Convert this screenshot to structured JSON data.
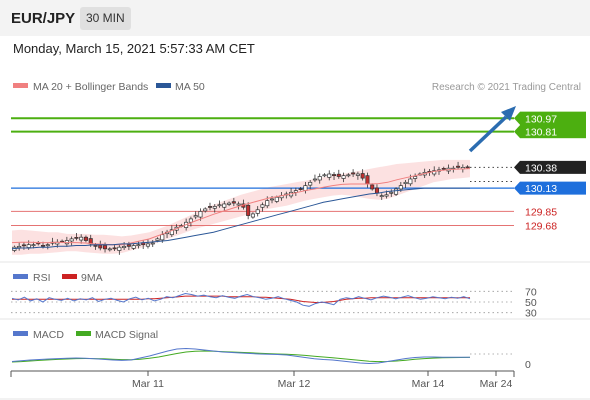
{
  "header": {
    "pair": "EUR/JPY",
    "interval": "30 MIN"
  },
  "datetime": "Monday, March 15, 2021 5:57:33 AM CET",
  "legend": {
    "ma20": "MA 20 + Bollinger Bands",
    "ma50": "MA 50"
  },
  "credit": "Research © 2021 Trading Central",
  "colors": {
    "ma20": "#f08080",
    "ma50": "#2b5797",
    "resistance": "#4caf10",
    "support": "#e57373",
    "current": "#222222",
    "ma50_label": "#1e6fdc",
    "arrow": "#2b6cb0",
    "rsi": "#5577cc",
    "rsi_ma": "#cc2222",
    "macd": "#5577cc",
    "macd_signal": "#44aa22"
  },
  "chart_data": [
    {
      "type": "candlestick",
      "title": "EUR/JPY",
      "interval": "30 MIN",
      "ylim": [
        129.35,
        131.25
      ],
      "x_ticks": [
        "Mar 11",
        "Mar 12",
        "Mar 14",
        "Mar 24"
      ],
      "levels": [
        {
          "name": "resistance",
          "value": 130.97,
          "label": "130.97"
        },
        {
          "name": "resistance",
          "value": 130.81,
          "label": "130.81"
        },
        {
          "name": "current",
          "value": 130.38,
          "label": "130.38"
        },
        {
          "name": "ma50",
          "value": 130.13,
          "label": "130.13"
        },
        {
          "name": "support",
          "value": 129.85,
          "label": "129.85"
        },
        {
          "name": "support",
          "value": 129.68,
          "label": "129.68"
        }
      ],
      "close_series": [
        129.42,
        129.43,
        129.44,
        129.45,
        129.45,
        129.46,
        129.44,
        129.45,
        129.47,
        129.48,
        129.49,
        129.5,
        129.52,
        129.53,
        129.54,
        129.5,
        129.46,
        129.44,
        129.41,
        129.4,
        129.4,
        129.41,
        129.42,
        129.43,
        129.43,
        129.44,
        129.45,
        129.45,
        129.46,
        129.47,
        129.52,
        129.57,
        129.6,
        129.63,
        129.66,
        129.68,
        129.72,
        129.76,
        129.8,
        129.85,
        129.88,
        129.9,
        129.91,
        129.93,
        129.94,
        129.95,
        129.95,
        129.94,
        129.9,
        129.8,
        129.82,
        129.87,
        129.93,
        129.98,
        130.0,
        130.02,
        130.04,
        130.06,
        130.08,
        130.1,
        130.12,
        130.16,
        130.2,
        130.24,
        130.27,
        130.29,
        130.3,
        130.28,
        130.27,
        130.28,
        130.29,
        130.3,
        130.3,
        130.25,
        130.18,
        130.12,
        130.07,
        130.04,
        130.05,
        130.08,
        130.12,
        130.16,
        130.2,
        130.24,
        130.27,
        130.3,
        130.32,
        130.33,
        130.34,
        130.35,
        130.36,
        130.37,
        130.37,
        130.38,
        130.38,
        130.38
      ],
      "bollinger_upper": [
        129.62,
        129.63,
        129.62,
        129.61,
        129.6,
        129.6,
        129.58,
        129.58,
        129.58,
        129.57,
        129.57,
        129.56,
        129.55,
        129.56,
        129.58,
        129.6,
        129.64,
        129.68,
        129.73,
        129.78,
        129.83,
        129.88,
        129.93,
        129.97,
        130.01,
        130.05,
        130.08,
        130.11,
        130.14,
        130.16,
        130.18,
        130.2,
        130.22,
        130.24,
        130.26,
        130.28,
        130.3,
        130.32,
        130.34,
        130.36,
        130.38,
        130.4,
        130.42,
        130.43,
        130.44,
        130.45,
        130.46,
        130.47,
        130.47,
        130.47,
        130.47
      ],
      "bollinger_lower": [
        129.33,
        129.33,
        129.34,
        129.34,
        129.35,
        129.36,
        129.37,
        129.37,
        129.36,
        129.35,
        129.34,
        129.34,
        129.35,
        129.38,
        129.41,
        129.44,
        129.48,
        129.52,
        129.56,
        129.6,
        129.64,
        129.67,
        129.7,
        129.73,
        129.76,
        129.79,
        129.82,
        129.85,
        129.88,
        129.9,
        129.92,
        129.95,
        129.98,
        130.0,
        130.02,
        130.04,
        130.05,
        130.04,
        130.02,
        130.0,
        129.99,
        130.0,
        130.04,
        130.08,
        130.12,
        130.16,
        130.2,
        130.22,
        130.24,
        130.25,
        130.26
      ],
      "ma50": [
        129.4,
        129.41,
        129.41,
        129.42,
        129.42,
        129.43,
        129.43,
        129.44,
        129.44,
        129.45,
        129.45,
        129.45,
        129.46,
        129.46,
        129.47,
        129.48,
        129.49,
        129.5,
        129.52,
        129.54,
        129.56,
        129.58,
        129.6,
        129.63,
        129.66,
        129.69,
        129.72,
        129.75,
        129.78,
        129.81,
        129.84,
        129.87,
        129.9,
        129.93,
        129.96,
        129.98,
        130.0,
        130.02,
        130.04,
        130.06,
        130.07,
        130.09,
        130.1,
        130.11,
        130.12,
        130.13,
        130.13,
        130.13,
        130.13,
        130.13,
        130.13
      ]
    },
    {
      "type": "line",
      "legend": [
        "RSI",
        "9MA"
      ],
      "ylim": [
        20,
        80
      ],
      "y_ticks": [
        70,
        50,
        30
      ],
      "rsi": [
        57,
        54,
        59,
        52,
        56,
        50,
        58,
        55,
        53,
        57,
        52,
        56,
        54,
        58,
        51,
        55,
        57,
        53,
        50,
        56,
        59,
        54,
        57,
        52,
        55,
        60,
        58,
        62,
        66,
        64,
        61,
        63,
        60,
        58,
        62,
        59,
        57,
        61,
        64,
        60,
        58,
        55,
        57,
        60,
        56,
        53,
        50,
        44,
        42,
        47,
        50,
        48,
        45,
        55,
        58,
        56,
        60,
        57,
        54,
        58,
        61,
        59,
        56,
        59,
        62,
        58,
        55,
        57,
        60,
        58,
        56,
        59,
        57,
        60,
        56
      ],
      "ma9": [
        55,
        55,
        55,
        55,
        55,
        55,
        55,
        55,
        55,
        55,
        55,
        55,
        55,
        55,
        55,
        55,
        55,
        55,
        55,
        55,
        55,
        55,
        56,
        56,
        57,
        58,
        59,
        60,
        61,
        61,
        61,
        61,
        61,
        61,
        61,
        60,
        60,
        60,
        60,
        60,
        59,
        59,
        58,
        57,
        56,
        55,
        53,
        51,
        50,
        49,
        49,
        50,
        51,
        53,
        55,
        56,
        57,
        57,
        58,
        58,
        58,
        58,
        58,
        58,
        58,
        58,
        58,
        58,
        58,
        58,
        58,
        58,
        58,
        58,
        58
      ]
    },
    {
      "type": "line",
      "legend": [
        "MACD",
        "MACD Signal"
      ],
      "y_ticks": [
        0
      ],
      "macd": [
        0.005,
        0.012,
        0.02,
        0.025,
        0.03,
        0.034,
        0.038,
        0.04,
        0.037,
        0.032,
        0.026,
        0.02,
        0.016,
        0.02,
        0.04,
        0.06,
        0.085,
        0.11,
        0.13,
        0.135,
        0.13,
        0.12,
        0.11,
        0.1,
        0.095,
        0.09,
        0.085,
        0.08,
        0.078,
        0.075,
        0.07,
        0.058,
        0.045,
        0.033,
        0.025,
        0.02,
        0.01,
        0.0,
        -0.01,
        -0.015,
        -0.01,
        0.005,
        0.02,
        0.035,
        0.045,
        0.05,
        0.05,
        0.048,
        0.048,
        0.048,
        0.047
      ],
      "signal": [
        0.0,
        0.004,
        0.01,
        0.016,
        0.021,
        0.026,
        0.03,
        0.034,
        0.035,
        0.034,
        0.032,
        0.028,
        0.024,
        0.023,
        0.028,
        0.037,
        0.05,
        0.067,
        0.085,
        0.1,
        0.108,
        0.11,
        0.108,
        0.104,
        0.1,
        0.096,
        0.092,
        0.088,
        0.084,
        0.08,
        0.077,
        0.072,
        0.066,
        0.058,
        0.05,
        0.043,
        0.034,
        0.025,
        0.016,
        0.008,
        0.004,
        0.005,
        0.01,
        0.018,
        0.027,
        0.034,
        0.039,
        0.042,
        0.044,
        0.045,
        0.046
      ]
    }
  ]
}
